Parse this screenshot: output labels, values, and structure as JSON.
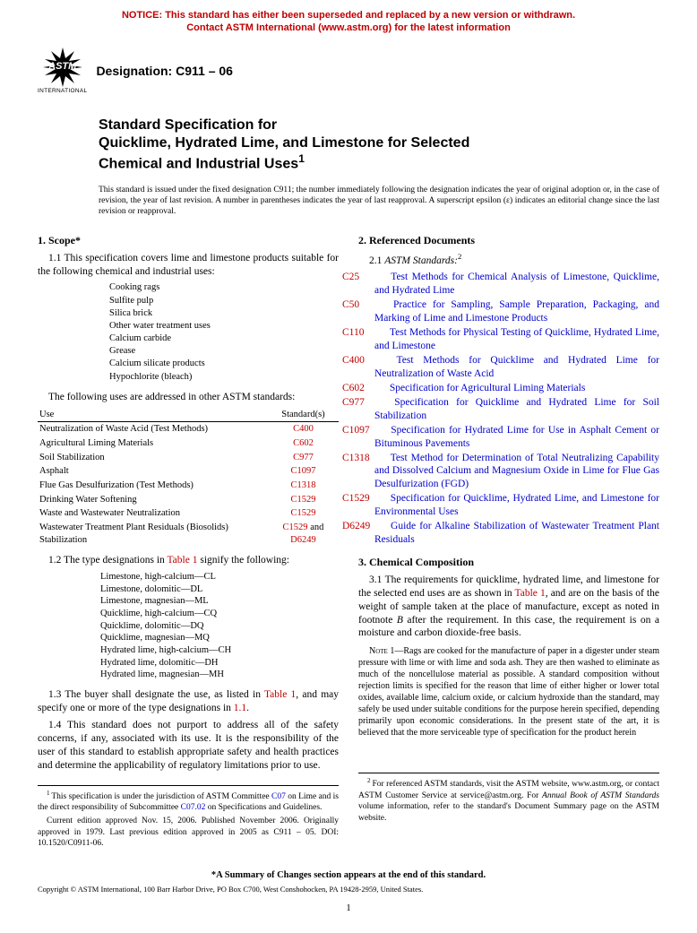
{
  "notice": {
    "line1": "NOTICE: This standard has either been superseded and replaced by a new version or withdrawn.",
    "line2": "Contact ASTM International (www.astm.org) for the latest information"
  },
  "logo": {
    "text": "ASTM",
    "label": "INTERNATIONAL"
  },
  "designation": "Designation: C911 – 06",
  "title": {
    "line1": "Standard Specification for",
    "line2": "Quicklime, Hydrated Lime, and Limestone for Selected",
    "line3": "Chemical and Industrial Uses",
    "sup": "1"
  },
  "issuance": "This standard is issued under the fixed designation C911; the number immediately following the designation indicates the year of original adoption or, in the case of revision, the year of last revision. A number in parentheses indicates the year of last reapproval. A superscript epsilon (ε) indicates an editorial change since the last revision or reapproval.",
  "s1": {
    "head": "1. Scope*",
    "p11": "1.1 This specification covers lime and limestone products suitable for the following chemical and industrial uses:",
    "uses": [
      "Cooking rags",
      "Sulfite pulp",
      "Silica brick",
      "Other water treatment uses",
      "Calcium carbide",
      "Grease",
      "Calcium silicate products",
      "Hypochlorite (bleach)"
    ],
    "p_other": "The following uses are addressed in other ASTM standards:",
    "tbl_head": [
      "Use",
      "Standard(s)"
    ],
    "tbl_rows": [
      {
        "use": "Neutralization of Waste Acid (Test Methods)",
        "std": "C400"
      },
      {
        "use": "Agricultural Liming Materials",
        "std": "C602"
      },
      {
        "use": "Soil Stabilization",
        "std": "C977"
      },
      {
        "use": "Asphalt",
        "std": "C1097"
      },
      {
        "use": "Flue Gas Desulfurization (Test Methods)",
        "std": "C1318"
      },
      {
        "use": "Drinking Water Softening",
        "std": "C1529"
      },
      {
        "use": "Waste and Wastewater Neutralization",
        "std": "C1529"
      },
      {
        "use": "Wastewater Treatment Plant Residuals (Biosolids) Stabilization",
        "std": "C1529 and D6249",
        "html": "<span class='redlink'>C1529</span> and <span class='redlink'>D6249</span>"
      }
    ],
    "p12": "1.2 The type designations in ",
    "p12_link": "Table 1",
    "p12_after": " signify the following:",
    "types": [
      "Limestone, high-calcium—CL",
      "Limestone, dolomitic—DL",
      "Limestone, magnesian—ML",
      "Quicklime, high-calcium—CQ",
      "Quicklime, dolomitic—DQ",
      "Quicklime, magnesian—MQ",
      "Hydrated lime, high-calcium—CH",
      "Hydrated lime, dolomitic—DH",
      "Hydrated lime, magnesian—MH"
    ],
    "p13a": "1.3 The buyer shall designate the use, as listed in ",
    "p13_link": "Table 1",
    "p13b": ", and may specify one or more of the type designations in ",
    "p13_link2": "1.1",
    "p13c": ".",
    "p14": "1.4 This standard does not purport to address all of the safety concerns, if any, associated with its use. It is the responsibility of the user of this standard to establish appropriate safety and health practices and determine the applicability of regulatory limitations prior to use."
  },
  "s2": {
    "head": "2. Referenced Documents",
    "p21a": "2.1 ",
    "p21b": "ASTM Standards:",
    "p21sup": "2",
    "refs": [
      {
        "code": "C25",
        "title": "Test Methods for Chemical Analysis of Limestone, Quicklime, and Hydrated Lime"
      },
      {
        "code": "C50",
        "title": "Practice for Sampling, Sample Preparation, Packaging, and Marking of Lime and Limestone Products"
      },
      {
        "code": "C110",
        "title": "Test Methods for Physical Testing of Quicklime, Hydrated Lime, and Limestone"
      },
      {
        "code": "C400",
        "title": "Test Methods for Quicklime and Hydrated Lime for Neutralization of Waste Acid"
      },
      {
        "code": "C602",
        "title": "Specification for Agricultural Liming Materials"
      },
      {
        "code": "C977",
        "title": "Specification for Quicklime and Hydrated Lime for Soil Stabilization"
      },
      {
        "code": "C1097",
        "title": "Specification for Hydrated Lime for Use in Asphalt Cement or Bituminous Pavements"
      },
      {
        "code": "C1318",
        "title": "Test Method for Determination of Total Neutralizing Capability and Dissolved Calcium and Magnesium Oxide in Lime for Flue Gas Desulfurization (FGD)"
      },
      {
        "code": "C1529",
        "title": "Specification for Quicklime, Hydrated Lime, and Limestone for Environmental Uses"
      },
      {
        "code": "D6249",
        "title": "Guide for Alkaline Stabilization of Wastewater Treatment Plant Residuals"
      }
    ]
  },
  "s3": {
    "head": "3. Chemical Composition",
    "p31a": "3.1 The requirements for quicklime, hydrated lime, and limestone for the selected end uses are as shown in ",
    "p31_link": "Table 1",
    "p31b": ", and are on the basis of the weight of sample taken at the place of manufacture, except as noted in footnote ",
    "p31i": "B",
    "p31c": " after the requirement. In this case, the requirement is on a moisture and carbon dioxide-free basis.",
    "note_label": "Note",
    "note_num": " 1—",
    "note": "Rags are cooked for the manufacture of paper in a digester under steam pressure with lime or with lime and soda ash. They are then washed to eliminate as much of the noncellulose material as possible. A standard composition without rejection limits is specified for the reason that lime of either higher or lower total oxides, available lime, calcium oxide, or calcium hydroxide than the standard, may safely be used under suitable conditions for the purpose herein specified, depending primarily upon economic considerations. In the present state of the art, it is believed that the more serviceable type of specification for the product herein"
  },
  "fn_left": {
    "p1a": "This specification is under the jurisdiction of ASTM Committee ",
    "p1link1": "C07",
    "p1b": " on Lime and is the direct responsibility of Subcommittee ",
    "p1link2": "C07.02",
    "p1c": " on Specifications and Guidelines.",
    "p2": "Current edition approved Nov. 15, 2006. Published November 2006. Originally approved in 1979. Last previous edition approved in 2005 as C911 – 05. DOI: 10.1520/C0911-06."
  },
  "fn_right": "For referenced ASTM standards, visit the ASTM website, www.astm.org, or contact ASTM Customer Service at service@astm.org. For Annual Book of ASTM Standards volume information, refer to the standard's Document Summary page on the ASTM website.",
  "fn_right_ital": "Annual Book of ASTM Standards",
  "summary": "*A Summary of Changes section appears at the end of this standard.",
  "copyright": "Copyright © ASTM International, 100 Barr Harbor Drive, PO Box C700, West Conshohocken, PA 19428-2959, United States.",
  "pagenum": "1"
}
